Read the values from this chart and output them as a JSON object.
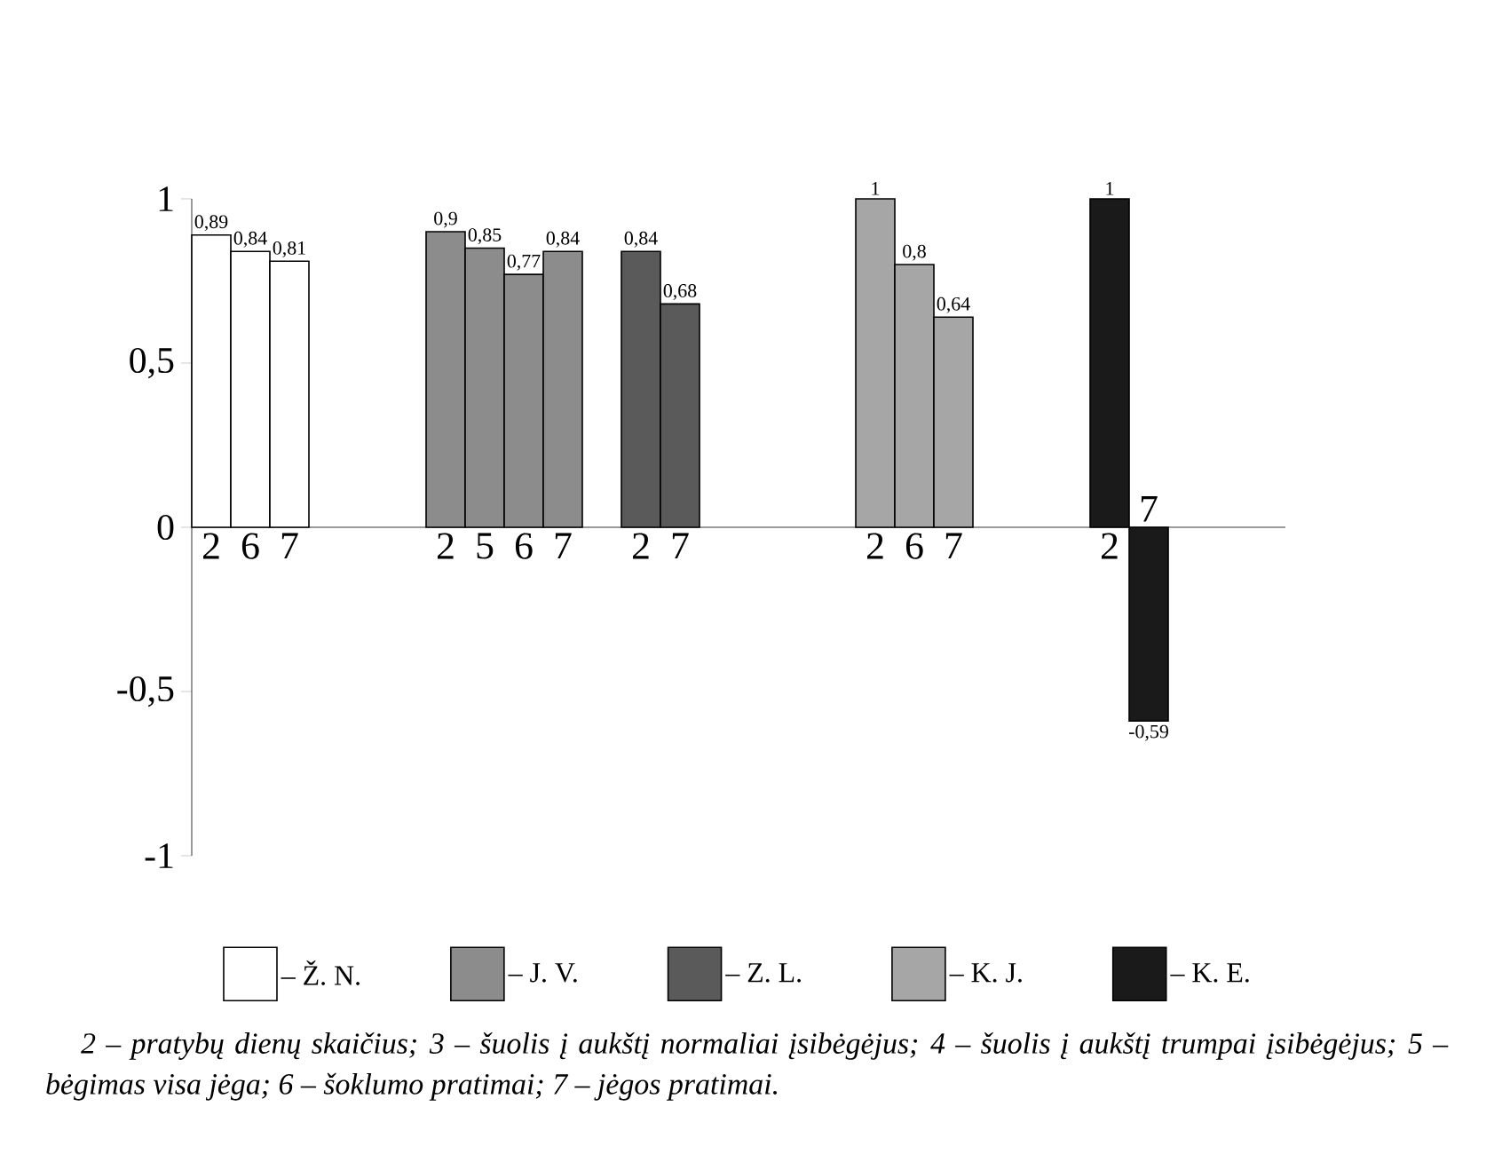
{
  "chart_data": {
    "type": "bar",
    "categories": [
      "2",
      "6",
      "7",
      null,
      null,
      null,
      "2",
      "5",
      "6",
      "7",
      null,
      "2",
      "7",
      null,
      null,
      null,
      null,
      "2",
      "6",
      "7",
      null,
      null,
      null,
      "2",
      "7",
      null,
      null,
      null
    ],
    "series": [
      {
        "name": "– Ž. N.",
        "color": "#ffffff",
        "values": [
          0.89,
          0.84,
          0.81,
          null,
          null,
          null,
          null,
          null,
          null,
          null,
          null,
          null,
          null,
          null,
          null,
          null,
          null,
          null,
          null,
          null,
          null,
          null,
          null,
          null,
          null,
          null,
          null,
          null
        ],
        "value_labels": [
          "0,89",
          "0,84",
          "0,81",
          null,
          null,
          null,
          null,
          null,
          null,
          null,
          null,
          null,
          null,
          null,
          null,
          null,
          null,
          null,
          null,
          null,
          null,
          null,
          null,
          null,
          null,
          null,
          null,
          null
        ]
      },
      {
        "name": "– J. V.",
        "color": "#8c8c8c",
        "values": [
          null,
          null,
          null,
          null,
          null,
          null,
          0.9,
          0.85,
          0.77,
          0.84,
          null,
          null,
          null,
          null,
          null,
          null,
          null,
          null,
          null,
          null,
          null,
          null,
          null,
          null,
          null,
          null,
          null,
          null
        ],
        "value_labels": [
          null,
          null,
          null,
          null,
          null,
          null,
          "0,9",
          "0,85",
          "0,77",
          "0,84",
          null,
          null,
          null,
          null,
          null,
          null,
          null,
          null,
          null,
          null,
          null,
          null,
          null,
          null,
          null,
          null,
          null,
          null
        ]
      },
      {
        "name": "– Z. L.",
        "color": "#5a5a5a",
        "values": [
          null,
          null,
          null,
          null,
          null,
          null,
          null,
          null,
          null,
          null,
          null,
          0.84,
          0.68,
          null,
          null,
          null,
          null,
          null,
          null,
          null,
          null,
          null,
          null,
          null,
          null,
          null,
          null,
          null
        ],
        "value_labels": [
          null,
          null,
          null,
          null,
          null,
          null,
          null,
          null,
          null,
          null,
          null,
          "0,84",
          "0,68",
          null,
          null,
          null,
          null,
          null,
          null,
          null,
          null,
          null,
          null,
          null,
          null,
          null,
          null,
          null
        ]
      },
      {
        "name": "– K. J.",
        "color": "#a6a6a6",
        "values": [
          null,
          null,
          null,
          null,
          null,
          null,
          null,
          null,
          null,
          null,
          null,
          null,
          null,
          null,
          null,
          null,
          null,
          1,
          0.8,
          0.64,
          null,
          null,
          null,
          null,
          null,
          null,
          null,
          null
        ],
        "value_labels": [
          null,
          null,
          null,
          null,
          null,
          null,
          null,
          null,
          null,
          null,
          null,
          null,
          null,
          null,
          null,
          null,
          null,
          "1",
          "0,8",
          "0,64",
          null,
          null,
          null,
          null,
          null,
          null,
          null,
          null
        ]
      },
      {
        "name": "– K. E.",
        "color": "#1a1a1a",
        "values": [
          null,
          null,
          null,
          null,
          null,
          null,
          null,
          null,
          null,
          null,
          null,
          null,
          null,
          null,
          null,
          null,
          null,
          null,
          null,
          null,
          null,
          null,
          null,
          1,
          -0.59,
          null,
          null,
          null
        ],
        "value_labels": [
          null,
          null,
          null,
          null,
          null,
          null,
          null,
          null,
          null,
          null,
          null,
          null,
          null,
          null,
          null,
          null,
          null,
          null,
          null,
          null,
          null,
          null,
          null,
          "1",
          "-0,59",
          null,
          null,
          null
        ]
      }
    ],
    "ylim": [
      -1,
      1
    ],
    "yticks": [
      {
        "value": -1,
        "label": "-1"
      },
      {
        "value": -0.5,
        "label": "-0,5"
      },
      0,
      {
        "value": 0.5,
        "label": "0,5"
      },
      1
    ],
    "legend": "bottom",
    "annotations": [
      "2 – pratybų dienų skaičius; 3 – šuolis į aukštį normaliai įsibėgėjus; 4 – šuolis į aukštį trumpai įsibėgėjus; 5 – bėgimas visa jėga; 6 – šoklumo pratimai; 7 – jėgos pratimai."
    ]
  }
}
